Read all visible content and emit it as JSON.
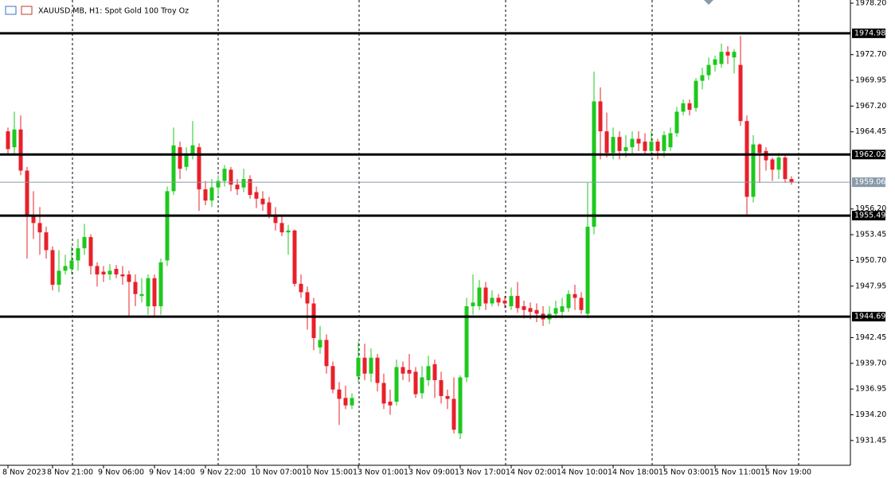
{
  "chart_data": {
    "type": "candlestick",
    "title": "XAUUSD.MB, H1:  Spot Gold 100 Troy Oz",
    "categories": [
      "8 Nov 2023",
      null,
      null,
      null,
      null,
      null,
      null,
      "8 Nov 21:00",
      null,
      null,
      null,
      null,
      null,
      null,
      null,
      "9 Nov 06:00",
      null,
      null,
      null,
      null,
      null,
      null,
      null,
      "9 Nov 14:00",
      null,
      null,
      null,
      null,
      null,
      null,
      null,
      "9 Nov 22:00",
      null,
      null,
      null,
      null,
      null,
      null,
      null,
      "10 Nov 07:00",
      null,
      null,
      null,
      null,
      null,
      null,
      null,
      "10 Nov 15:00",
      null,
      null,
      null,
      null,
      null,
      null,
      null,
      "13 Nov 01:00",
      null,
      null,
      null,
      null,
      null,
      null,
      null,
      "13 Nov 09:00",
      null,
      null,
      null,
      null,
      null,
      null,
      null,
      "13 Nov 17:00",
      null,
      null,
      null,
      null,
      null,
      null,
      null,
      "14 Nov 02:00",
      null,
      null,
      null,
      null,
      null,
      null,
      null,
      "14 Nov 10:00",
      null,
      null,
      null,
      null,
      null,
      null,
      null,
      "14 Nov 18:00",
      null,
      null,
      null,
      null,
      null,
      null,
      null,
      "15 Nov 03:00",
      null,
      null,
      null,
      null,
      null,
      null,
      null,
      "15 Nov 11:00",
      null,
      null,
      null,
      null,
      null,
      null,
      null,
      "15 Nov 19:00",
      null,
      null,
      null,
      null
    ],
    "open": [
      1964.5,
      1962.8,
      1964.7,
      1960.3,
      1955.4,
      1954.7,
      1953.7,
      1951.8,
      1948.1,
      1949.6,
      1949.8,
      1950.7,
      1952.0,
      1953.2,
      1950.1,
      1949.5,
      1949.2,
      1949.8,
      1949.2,
      1949.2,
      1948.4,
      1946.9,
      1945.8,
      1948.8,
      1945.8,
      1950.7,
      1958.1,
      1962.8,
      1960.7,
      1962.0,
      1962.8,
      1958.3,
      1957.1,
      1958.5,
      1959.2,
      1960.4,
      1958.8,
      1958.5,
      1959.4,
      1958.0,
      1957.3,
      1956.9,
      1955.6,
      1954.7,
      1953.7,
      1953.9,
      1948.2,
      1947.3,
      1946.1,
      1941.4,
      1942.2,
      1939.4,
      1936.9,
      1936.0,
      1935.2,
      1938.3,
      1940.3,
      1938.6,
      1940.3,
      1937.6,
      1935.6,
      1935.6,
      1939.3,
      1939.0,
      1938.8,
      1936.5,
      1937.9,
      1939.6,
      1937.9,
      1936.2,
      1935.9,
      1932.2,
      1938.2,
      1945.8,
      1945.8,
      1947.8,
      1946.1,
      1946.7,
      1946.4,
      1945.8,
      1946.9,
      1945.8,
      1945.6,
      1945.4,
      1945.0,
      1944.4,
      1945.0,
      1945.2,
      1945.6,
      1947.1,
      1946.7,
      1945.0,
      1954.3,
      1967.7,
      1964.5,
      1962.2,
      1963.9,
      1962.4,
      1962.8,
      1963.7,
      1963.4,
      1962.4,
      1963.4,
      1962.4,
      1962.8,
      1964.3,
      1966.6,
      1967.5,
      1967.0,
      1969.9,
      1970.5,
      1971.6,
      1971.7,
      1973.0,
      1972.4,
      1971.6,
      1965.6,
      1957.5,
      1963.1,
      1962.4,
      1961.5,
      1960.4,
      1961.7,
      1959.4
    ],
    "high": [
      1964.9,
      1966.6,
      1966.2,
      1960.7,
      1958.1,
      1956.4,
      1954.3,
      1952.2,
      1951.8,
      1951.3,
      1952.2,
      1953.0,
      1954.6,
      1953.5,
      1950.5,
      1950.1,
      1950.3,
      1950.2,
      1950.1,
      1949.6,
      1949.2,
      1948.8,
      1949.2,
      1949.2,
      1950.9,
      1958.6,
      1964.9,
      1963.4,
      1962.8,
      1965.6,
      1963.2,
      1959.2,
      1959.4,
      1959.8,
      1960.9,
      1960.7,
      1959.4,
      1960.5,
      1959.8,
      1958.6,
      1958.1,
      1957.5,
      1956.4,
      1955.4,
      1954.5,
      1954.0,
      1949.2,
      1947.9,
      1946.7,
      1943.7,
      1942.8,
      1939.9,
      1937.7,
      1937.3,
      1936.5,
      1942.0,
      1941.8,
      1941.3,
      1940.7,
      1938.6,
      1936.9,
      1940.1,
      1939.9,
      1940.7,
      1939.3,
      1939.4,
      1940.5,
      1940.1,
      1938.8,
      1936.9,
      1938.2,
      1938.4,
      1946.7,
      1949.2,
      1948.6,
      1948.4,
      1947.5,
      1947.1,
      1946.9,
      1947.8,
      1948.4,
      1946.4,
      1946.2,
      1946.1,
      1945.8,
      1945.8,
      1946.4,
      1946.7,
      1947.5,
      1948.1,
      1947.3,
      1959.0,
      1970.9,
      1969.2,
      1966.5,
      1964.9,
      1964.5,
      1964.1,
      1964.5,
      1964.5,
      1964.3,
      1964.5,
      1963.7,
      1964.5,
      1964.9,
      1967.1,
      1967.9,
      1967.9,
      1970.2,
      1971.3,
      1972.4,
      1972.6,
      1973.9,
      1973.6,
      1973.3,
      1974.7,
      1966.2,
      1964.1,
      1963.2,
      1962.8,
      1961.7,
      1962.2,
      1962.0,
      1959.7
    ],
    "low": [
      1962.0,
      1962.0,
      1959.8,
      1950.9,
      1953.0,
      1951.3,
      1950.9,
      1947.5,
      1947.3,
      1949.2,
      1949.2,
      1949.6,
      1951.3,
      1949.2,
      1947.9,
      1948.4,
      1948.6,
      1948.8,
      1948.1,
      1944.7,
      1945.8,
      1946.2,
      1944.9,
      1944.7,
      1944.9,
      1950.1,
      1957.7,
      1959.4,
      1960.3,
      1961.5,
      1956.0,
      1956.6,
      1956.4,
      1957.7,
      1958.6,
      1958.1,
      1957.7,
      1958.0,
      1957.3,
      1956.3,
      1956.0,
      1955.2,
      1953.9,
      1953.3,
      1951.3,
      1947.9,
      1946.7,
      1943.3,
      1941.1,
      1940.7,
      1938.6,
      1936.5,
      1933.1,
      1934.8,
      1934.8,
      1937.7,
      1937.9,
      1937.7,
      1936.7,
      1934.8,
      1934.2,
      1935.2,
      1937.9,
      1937.7,
      1936.0,
      1935.9,
      1937.3,
      1936.0,
      1935.4,
      1934.8,
      1932.2,
      1931.6,
      1937.7,
      1944.9,
      1945.4,
      1945.4,
      1945.8,
      1945.8,
      1945.6,
      1945.4,
      1945.1,
      1944.5,
      1944.4,
      1944.1,
      1943.7,
      1943.9,
      1944.5,
      1944.5,
      1945.2,
      1945.4,
      1945.0,
      1944.5,
      1953.5,
      1961.5,
      1961.7,
      1961.5,
      1961.5,
      1961.7,
      1962.0,
      1962.4,
      1962.0,
      1961.8,
      1961.5,
      1961.7,
      1962.4,
      1963.9,
      1966.2,
      1966.2,
      1966.6,
      1969.0,
      1970.0,
      1970.9,
      1971.3,
      1971.7,
      1970.7,
      1965.1,
      1955.4,
      1956.9,
      1959.0,
      1960.3,
      1959.2,
      1959.4,
      1959.0,
      1958.8
    ],
    "close": [
      1962.6,
      1964.7,
      1960.3,
      1955.4,
      1954.7,
      1953.7,
      1951.8,
      1948.1,
      1949.6,
      1950.1,
      1950.7,
      1952.0,
      1953.2,
      1950.1,
      1949.2,
      1949.2,
      1949.6,
      1949.2,
      1949.0,
      1948.4,
      1947.1,
      1947.1,
      1948.8,
      1945.8,
      1950.5,
      1958.1,
      1963.0,
      1960.5,
      1962.0,
      1963.0,
      1958.3,
      1957.1,
      1958.5,
      1959.2,
      1960.5,
      1958.8,
      1958.3,
      1959.4,
      1957.7,
      1957.3,
      1956.7,
      1955.6,
      1954.7,
      1953.7,
      1953.9,
      1948.2,
      1947.3,
      1946.1,
      1942.4,
      1942.2,
      1939.4,
      1936.9,
      1935.9,
      1935.2,
      1936.0,
      1940.3,
      1938.6,
      1940.3,
      1937.6,
      1935.4,
      1935.2,
      1939.3,
      1938.6,
      1938.6,
      1936.4,
      1938.2,
      1939.4,
      1937.9,
      1936.2,
      1935.9,
      1932.6,
      1938.2,
      1945.8,
      1946.2,
      1947.8,
      1946.1,
      1946.7,
      1946.2,
      1946.1,
      1946.9,
      1945.6,
      1945.4,
      1945.2,
      1945.0,
      1944.4,
      1945.0,
      1945.6,
      1945.8,
      1947.1,
      1946.7,
      1945.4,
      1954.3,
      1967.7,
      1964.5,
      1962.2,
      1963.9,
      1962.4,
      1962.8,
      1963.7,
      1963.2,
      1962.4,
      1963.4,
      1962.4,
      1964.1,
      1964.3,
      1966.6,
      1967.5,
      1966.8,
      1969.9,
      1970.5,
      1971.6,
      1972.2,
      1973.0,
      1972.6,
      1973.0,
      1965.6,
      1957.5,
      1963.1,
      1962.2,
      1961.4,
      1960.4,
      1961.7,
      1959.4,
      1959.06
    ],
    "up_color": "#1ec81e",
    "down_color": "#e8202a",
    "levels": [
      1974.98,
      1962.02,
      1955.49,
      1944.69
    ],
    "last_price": 1959.06,
    "ylim": [
      1928.8,
      1978.54
    ],
    "yticks": [
      {
        "value": 1978.2,
        "label": "1978.20"
      },
      {
        "value": 1972.7,
        "label": "1972.70"
      },
      1969.95,
      {
        "value": 1967.2,
        "label": "1967.20"
      },
      1964.45,
      {
        "value": 1956.2,
        "label": "1956.20"
      },
      1953.45,
      {
        "value": 1950.7,
        "label": "1950.70"
      },
      1947.95,
      1942.45,
      {
        "value": 1939.7,
        "label": "1939.70"
      },
      1936.95,
      {
        "value": 1934.2,
        "label": "1934.20"
      },
      1931.45
    ]
  }
}
